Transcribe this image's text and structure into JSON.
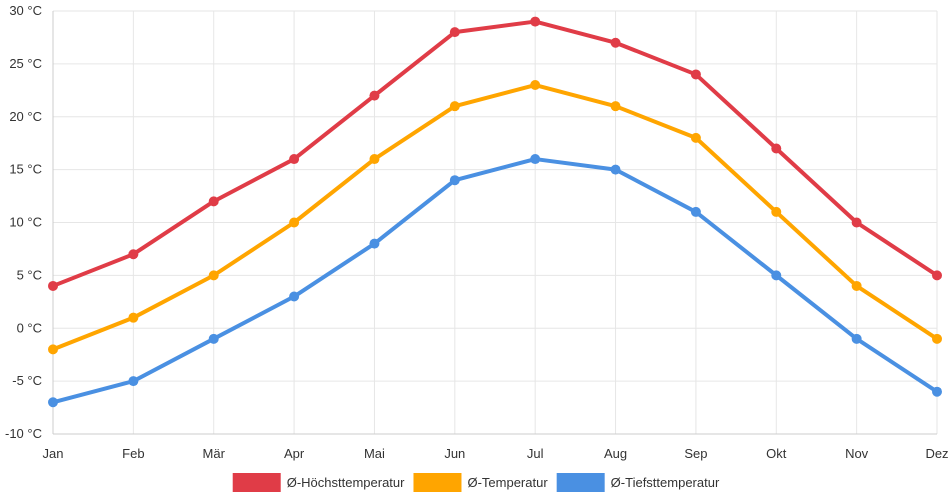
{
  "chart_data": {
    "type": "line",
    "title": "",
    "xlabel": "",
    "ylabel": "",
    "categories": [
      "Jan",
      "Feb",
      "Mär",
      "Apr",
      "Mai",
      "Jun",
      "Jul",
      "Aug",
      "Sep",
      "Okt",
      "Nov",
      "Dez"
    ],
    "ylim": [
      -10,
      30
    ],
    "yticks": [
      30,
      25,
      20,
      15,
      10,
      5,
      0,
      -5,
      -10
    ],
    "y_unit": " °C",
    "y_tick_labels": [
      "30 °C",
      "25 °C",
      "20 °C",
      "15 °C",
      "10 °C",
      "5 °C",
      "0 °C",
      "-5 °C",
      "-10 °C"
    ],
    "grid": true,
    "legend_position": "bottom-center",
    "series": [
      {
        "name": "Ø-Höchsttemperatur",
        "color": "#e03c47",
        "values": [
          4,
          7,
          12,
          16,
          22,
          28,
          29,
          27,
          24,
          17,
          10,
          5
        ]
      },
      {
        "name": "Ø-Temperatur",
        "color": "#ffa500",
        "values": [
          -2,
          1,
          5,
          10,
          16,
          21,
          23,
          21,
          18,
          11,
          4,
          -1
        ]
      },
      {
        "name": "Ø-Tiefsttemperatur",
        "color": "#4a90e2",
        "values": [
          -7,
          -5,
          -1,
          3,
          8,
          14,
          16,
          15,
          11,
          5,
          -1,
          -6
        ]
      }
    ]
  }
}
